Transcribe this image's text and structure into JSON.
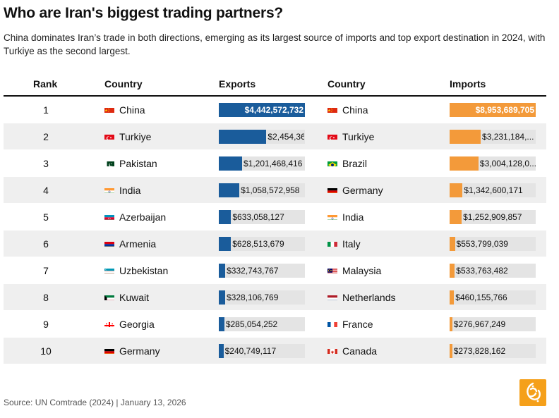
{
  "title": "Who are Iran's biggest trading partners?",
  "subtitle": "China dominates Iran’s trade in both directions, emerging as its largest source of imports and top export destination in 2024, with Turkiye as the second largest.",
  "headers": {
    "rank": "Rank",
    "country": "Country",
    "exports": "Exports",
    "country2": "Country",
    "imports": "Imports"
  },
  "footer": "Source: UN Comtrade (2024) | January 13, 2026",
  "colors": {
    "exports": "#1a5c9b",
    "imports": "#f39a3a",
    "track": "#e4e4e4"
  },
  "chart_data": {
    "type": "table",
    "exports_max": 4442572732,
    "imports_max": 8953689705,
    "rows": [
      {
        "rank": "1",
        "exp_country": "China",
        "exp_flag": "china",
        "exp_value": 4442572732,
        "exp_label": "$4,442,572,732",
        "imp_country": "China",
        "imp_flag": "china",
        "imp_value": 8953689705,
        "imp_label": "$8,953,689,705"
      },
      {
        "rank": "2",
        "exp_country": "Turkiye",
        "exp_flag": "turkiye",
        "exp_value": 2454360000,
        "exp_label": "$2,454,36...",
        "imp_country": "Turkiye",
        "imp_flag": "turkiye",
        "imp_value": 3231184000,
        "imp_label": "$3,231,184,..."
      },
      {
        "rank": "3",
        "exp_country": "Pakistan",
        "exp_flag": "pakistan",
        "exp_value": 1201468416,
        "exp_label": "$1,201,468,416",
        "imp_country": "Brazil",
        "imp_flag": "brazil",
        "imp_value": 3004128000,
        "imp_label": "$3,004,128,0..."
      },
      {
        "rank": "4",
        "exp_country": "India",
        "exp_flag": "india",
        "exp_value": 1058572958,
        "exp_label": "$1,058,572,958",
        "imp_country": "Germany",
        "imp_flag": "germany",
        "imp_value": 1342600171,
        "imp_label": "$1,342,600,171"
      },
      {
        "rank": "5",
        "exp_country": "Azerbaijan",
        "exp_flag": "azerbaijan",
        "exp_value": 633058127,
        "exp_label": "$633,058,127",
        "imp_country": "India",
        "imp_flag": "india",
        "imp_value": 1252909857,
        "imp_label": "$1,252,909,857"
      },
      {
        "rank": "6",
        "exp_country": "Armenia",
        "exp_flag": "armenia",
        "exp_value": 628513679,
        "exp_label": "$628,513,679",
        "imp_country": "Italy",
        "imp_flag": "italy",
        "imp_value": 553799039,
        "imp_label": "$553,799,039"
      },
      {
        "rank": "7",
        "exp_country": "Uzbekistan",
        "exp_flag": "uzbekistan",
        "exp_value": 332743767,
        "exp_label": "$332,743,767",
        "imp_country": "Malaysia",
        "imp_flag": "malaysia",
        "imp_value": 533763482,
        "imp_label": "$533,763,482"
      },
      {
        "rank": "8",
        "exp_country": "Kuwait",
        "exp_flag": "kuwait",
        "exp_value": 328106769,
        "exp_label": "$328,106,769",
        "imp_country": "Netherlands",
        "imp_flag": "netherlands",
        "imp_value": 460155766,
        "imp_label": "$460,155,766"
      },
      {
        "rank": "9",
        "exp_country": "Georgia",
        "exp_flag": "georgia",
        "exp_value": 285054252,
        "exp_label": "$285,054,252",
        "imp_country": "France",
        "imp_flag": "france",
        "imp_value": 276967249,
        "imp_label": "$276,967,249"
      },
      {
        "rank": "10",
        "exp_country": "Germany",
        "exp_flag": "germany",
        "exp_value": 240749117,
        "exp_label": "$240,749,117",
        "imp_country": "Canada",
        "imp_flag": "canada",
        "imp_value": 273828162,
        "imp_label": "$273,828,162"
      }
    ]
  }
}
